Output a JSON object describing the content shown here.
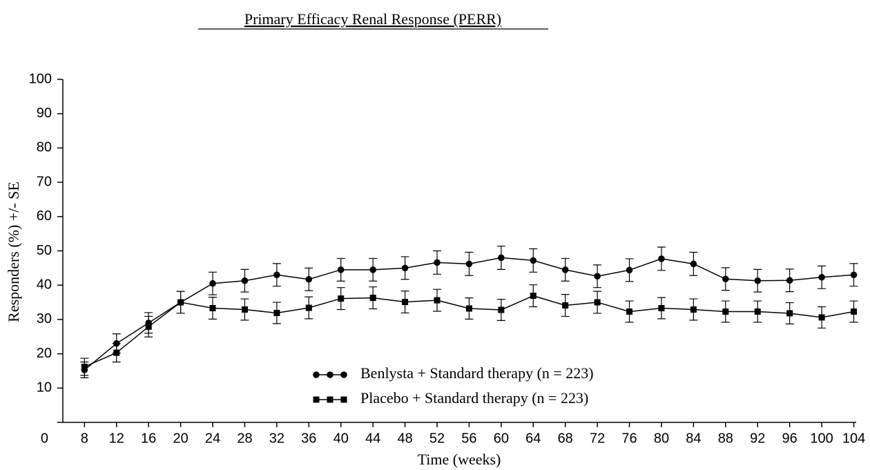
{
  "chart_data": {
    "type": "line",
    "title": "Primary Efficacy Renal Response (PERR)",
    "xlabel": "Time (weeks)",
    "ylabel": "Responders (%) +/- SE",
    "x": [
      8,
      12,
      16,
      20,
      24,
      28,
      32,
      36,
      40,
      44,
      48,
      52,
      56,
      60,
      64,
      68,
      72,
      76,
      80,
      84,
      88,
      92,
      96,
      100,
      104
    ],
    "xlim": [
      5.3,
      104.3
    ],
    "xticks": [
      8,
      12,
      16,
      20,
      24,
      28,
      32,
      36,
      40,
      44,
      48,
      52,
      56,
      60,
      64,
      68,
      72,
      76,
      80,
      84,
      88,
      92,
      96,
      100,
      104
    ],
    "ylim": [
      0,
      100
    ],
    "yticks": [
      0,
      10,
      20,
      30,
      40,
      50,
      60,
      70,
      80,
      90,
      100
    ],
    "grid": false,
    "series": [
      {
        "name": "Benlysta + Standard therapy (n = 223)",
        "color": "#000000",
        "marker": "circle",
        "values": [
          15.3,
          23,
          29,
          35,
          40.5,
          41.3,
          43,
          41.7,
          44.5,
          44.5,
          45,
          46.6,
          46.2,
          48,
          47.2,
          44.5,
          42.6,
          44.4,
          47.7,
          46.2,
          41.8,
          41.3,
          41.4,
          42.3,
          43
        ],
        "errors": [
          2.3,
          2.8,
          3.0,
          3.2,
          3.3,
          3.3,
          3.3,
          3.3,
          3.3,
          3.3,
          3.3,
          3.4,
          3.4,
          3.4,
          3.4,
          3.3,
          3.3,
          3.3,
          3.4,
          3.4,
          3.3,
          3.3,
          3.3,
          3.3,
          3.3
        ]
      },
      {
        "name": "Placebo + Standard therapy (n = 223)",
        "color": "#000000",
        "marker": "square",
        "values": [
          16.2,
          20.3,
          27.9,
          35,
          33.3,
          32.9,
          31.9,
          33.4,
          36.1,
          36.3,
          35.1,
          35.6,
          33.2,
          32.8,
          36.9,
          34.1,
          35,
          32.3,
          33.3,
          32.9,
          32.3,
          32.3,
          31.8,
          30.6,
          32.3
        ],
        "errors": [
          2.5,
          2.7,
          3.0,
          3.2,
          3.2,
          3.1,
          3.1,
          3.2,
          3.2,
          3.2,
          3.2,
          3.2,
          3.1,
          3.1,
          3.2,
          3.2,
          3.2,
          3.1,
          3.1,
          3.1,
          3.1,
          3.1,
          3.1,
          3.1,
          3.1
        ]
      }
    ]
  }
}
